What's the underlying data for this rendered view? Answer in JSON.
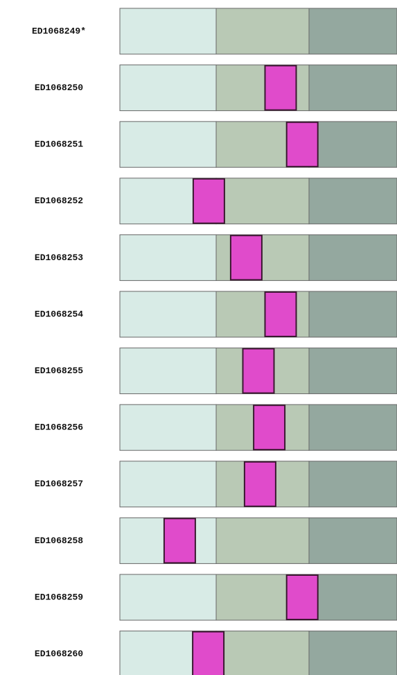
{
  "chart_data": {
    "type": "range",
    "categories": [
      "ED1068249*",
      "ED1068250",
      "ED1068251",
      "ED1068252",
      "ED1068253",
      "ED1068254",
      "ED1068255",
      "ED1068256",
      "ED1068257",
      "ED1068258",
      "ED1068259",
      "ED1068260"
    ],
    "values": [
      null,
      58,
      65.8,
      32.1,
      45.6,
      58,
      50,
      53.9,
      50.6,
      21.6,
      65.8,
      31.9
    ],
    "xlim": [
      0,
      100
    ],
    "band_edges": [
      34.75,
      68.25
    ],
    "band_colors": [
      "#d8ebe6",
      "#b9c9b5",
      "#94a89f"
    ],
    "color": "#e04bcb"
  }
}
